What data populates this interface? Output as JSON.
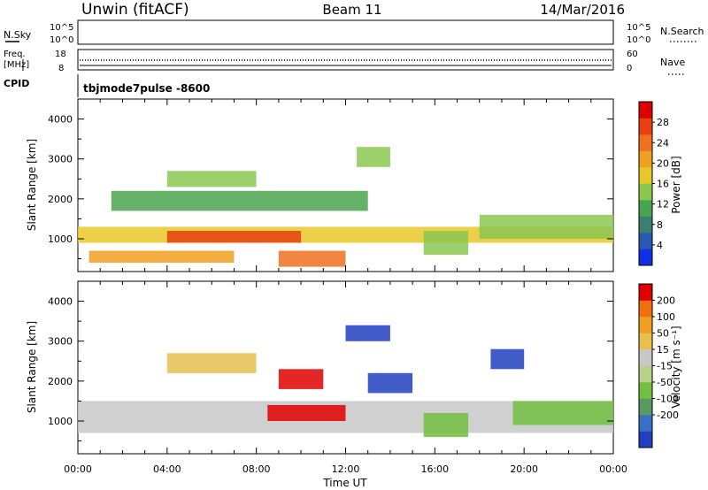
{
  "header": {
    "station": "Unwin (fitACF)",
    "beam": "Beam 11",
    "date": "14/Mar/2016"
  },
  "noise_panel": {
    "left_label": "N.Sky",
    "right_label": "N.Search",
    "ticks": [
      "10^5",
      "10^0"
    ]
  },
  "freq_panel": {
    "label_line1": "Freq.",
    "label_line2": "[MHz]",
    "left_ticks": [
      "18",
      "8"
    ],
    "right_ticks": [
      "60",
      "0"
    ],
    "right_label": "Nave"
  },
  "cpid": {
    "label": "CPID",
    "value": "tbjmode7pulse -8600"
  },
  "chart_data": [
    {
      "type": "heatmap",
      "ylabel": "Slant Range [km]",
      "xlabel": "Time UT",
      "x_ticks": [
        "00:00",
        "04:00",
        "08:00",
        "12:00",
        "16:00",
        "20:00",
        "00:00"
      ],
      "y_ticks": [
        "1000",
        "2000",
        "3000",
        "4000"
      ],
      "ylim": [
        180,
        4500
      ],
      "xlim_hours": [
        0,
        24
      ],
      "colorbar": {
        "label": "Power [dB]",
        "ticks": [
          "4",
          "8",
          "12",
          "16",
          "20",
          "24",
          "28"
        ],
        "colors": [
          "#1030e8",
          "#2a58b0",
          "#3a7f72",
          "#4aa350",
          "#8ac850",
          "#e8c828",
          "#f0a020",
          "#f07020",
          "#e84010",
          "#dd0000"
        ]
      },
      "regions": [
        {
          "t": [
            0,
            24
          ],
          "r": [
            900,
            1300
          ],
          "c": 5
        },
        {
          "t": [
            4,
            10
          ],
          "r": [
            900,
            1200
          ],
          "c": 8
        },
        {
          "t": [
            0.5,
            7
          ],
          "r": [
            400,
            700
          ],
          "c": 6
        },
        {
          "t": [
            1.5,
            13
          ],
          "r": [
            1700,
            2200
          ],
          "c": 3
        },
        {
          "t": [
            4,
            8
          ],
          "r": [
            2300,
            2700
          ],
          "c": 4
        },
        {
          "t": [
            9,
            12
          ],
          "r": [
            300,
            700
          ],
          "c": 7
        },
        {
          "t": [
            12.5,
            14
          ],
          "r": [
            2800,
            3300
          ],
          "c": 4
        },
        {
          "t": [
            18,
            24
          ],
          "r": [
            1000,
            1600
          ],
          "c": 4
        },
        {
          "t": [
            15.5,
            17.5
          ],
          "r": [
            600,
            1200
          ],
          "c": 4
        }
      ]
    },
    {
      "type": "heatmap",
      "ylabel": "Slant Range [km]",
      "xlabel": "Time UT",
      "x_ticks": [
        "00:00",
        "04:00",
        "08:00",
        "12:00",
        "16:00",
        "20:00",
        "00:00"
      ],
      "y_ticks": [
        "1000",
        "2000",
        "3000",
        "4000"
      ],
      "ylim": [
        180,
        4500
      ],
      "xlim_hours": [
        0,
        24
      ],
      "colorbar": {
        "label": "Velocity [m s⁻¹]",
        "ticks": [
          "200",
          "100",
          "50",
          "15",
          "-15",
          "-50",
          "-100",
          "-200"
        ],
        "colors": [
          "#2040c0",
          "#3870c8",
          "#5a9a60",
          "#72c040",
          "#b8d08a",
          "#c8c8c8",
          "#e8c050",
          "#f0a020",
          "#f07010",
          "#e00000"
        ]
      },
      "regions": [
        {
          "t": [
            0,
            24
          ],
          "r": [
            700,
            1500
          ],
          "c": 5
        },
        {
          "t": [
            8.5,
            12
          ],
          "r": [
            1000,
            1400
          ],
          "c": 9
        },
        {
          "t": [
            9,
            11
          ],
          "r": [
            1800,
            2300
          ],
          "c": 9
        },
        {
          "t": [
            13,
            15
          ],
          "r": [
            1700,
            2200
          ],
          "c": 0
        },
        {
          "t": [
            18.5,
            20
          ],
          "r": [
            2300,
            2800
          ],
          "c": 0
        },
        {
          "t": [
            4,
            8
          ],
          "r": [
            2200,
            2700
          ],
          "c": 6
        },
        {
          "t": [
            15.5,
            17.5
          ],
          "r": [
            600,
            1200
          ],
          "c": 3
        },
        {
          "t": [
            19.5,
            24
          ],
          "r": [
            900,
            1500
          ],
          "c": 3
        },
        {
          "t": [
            12,
            14
          ],
          "r": [
            3000,
            3400
          ],
          "c": 0
        }
      ]
    }
  ]
}
